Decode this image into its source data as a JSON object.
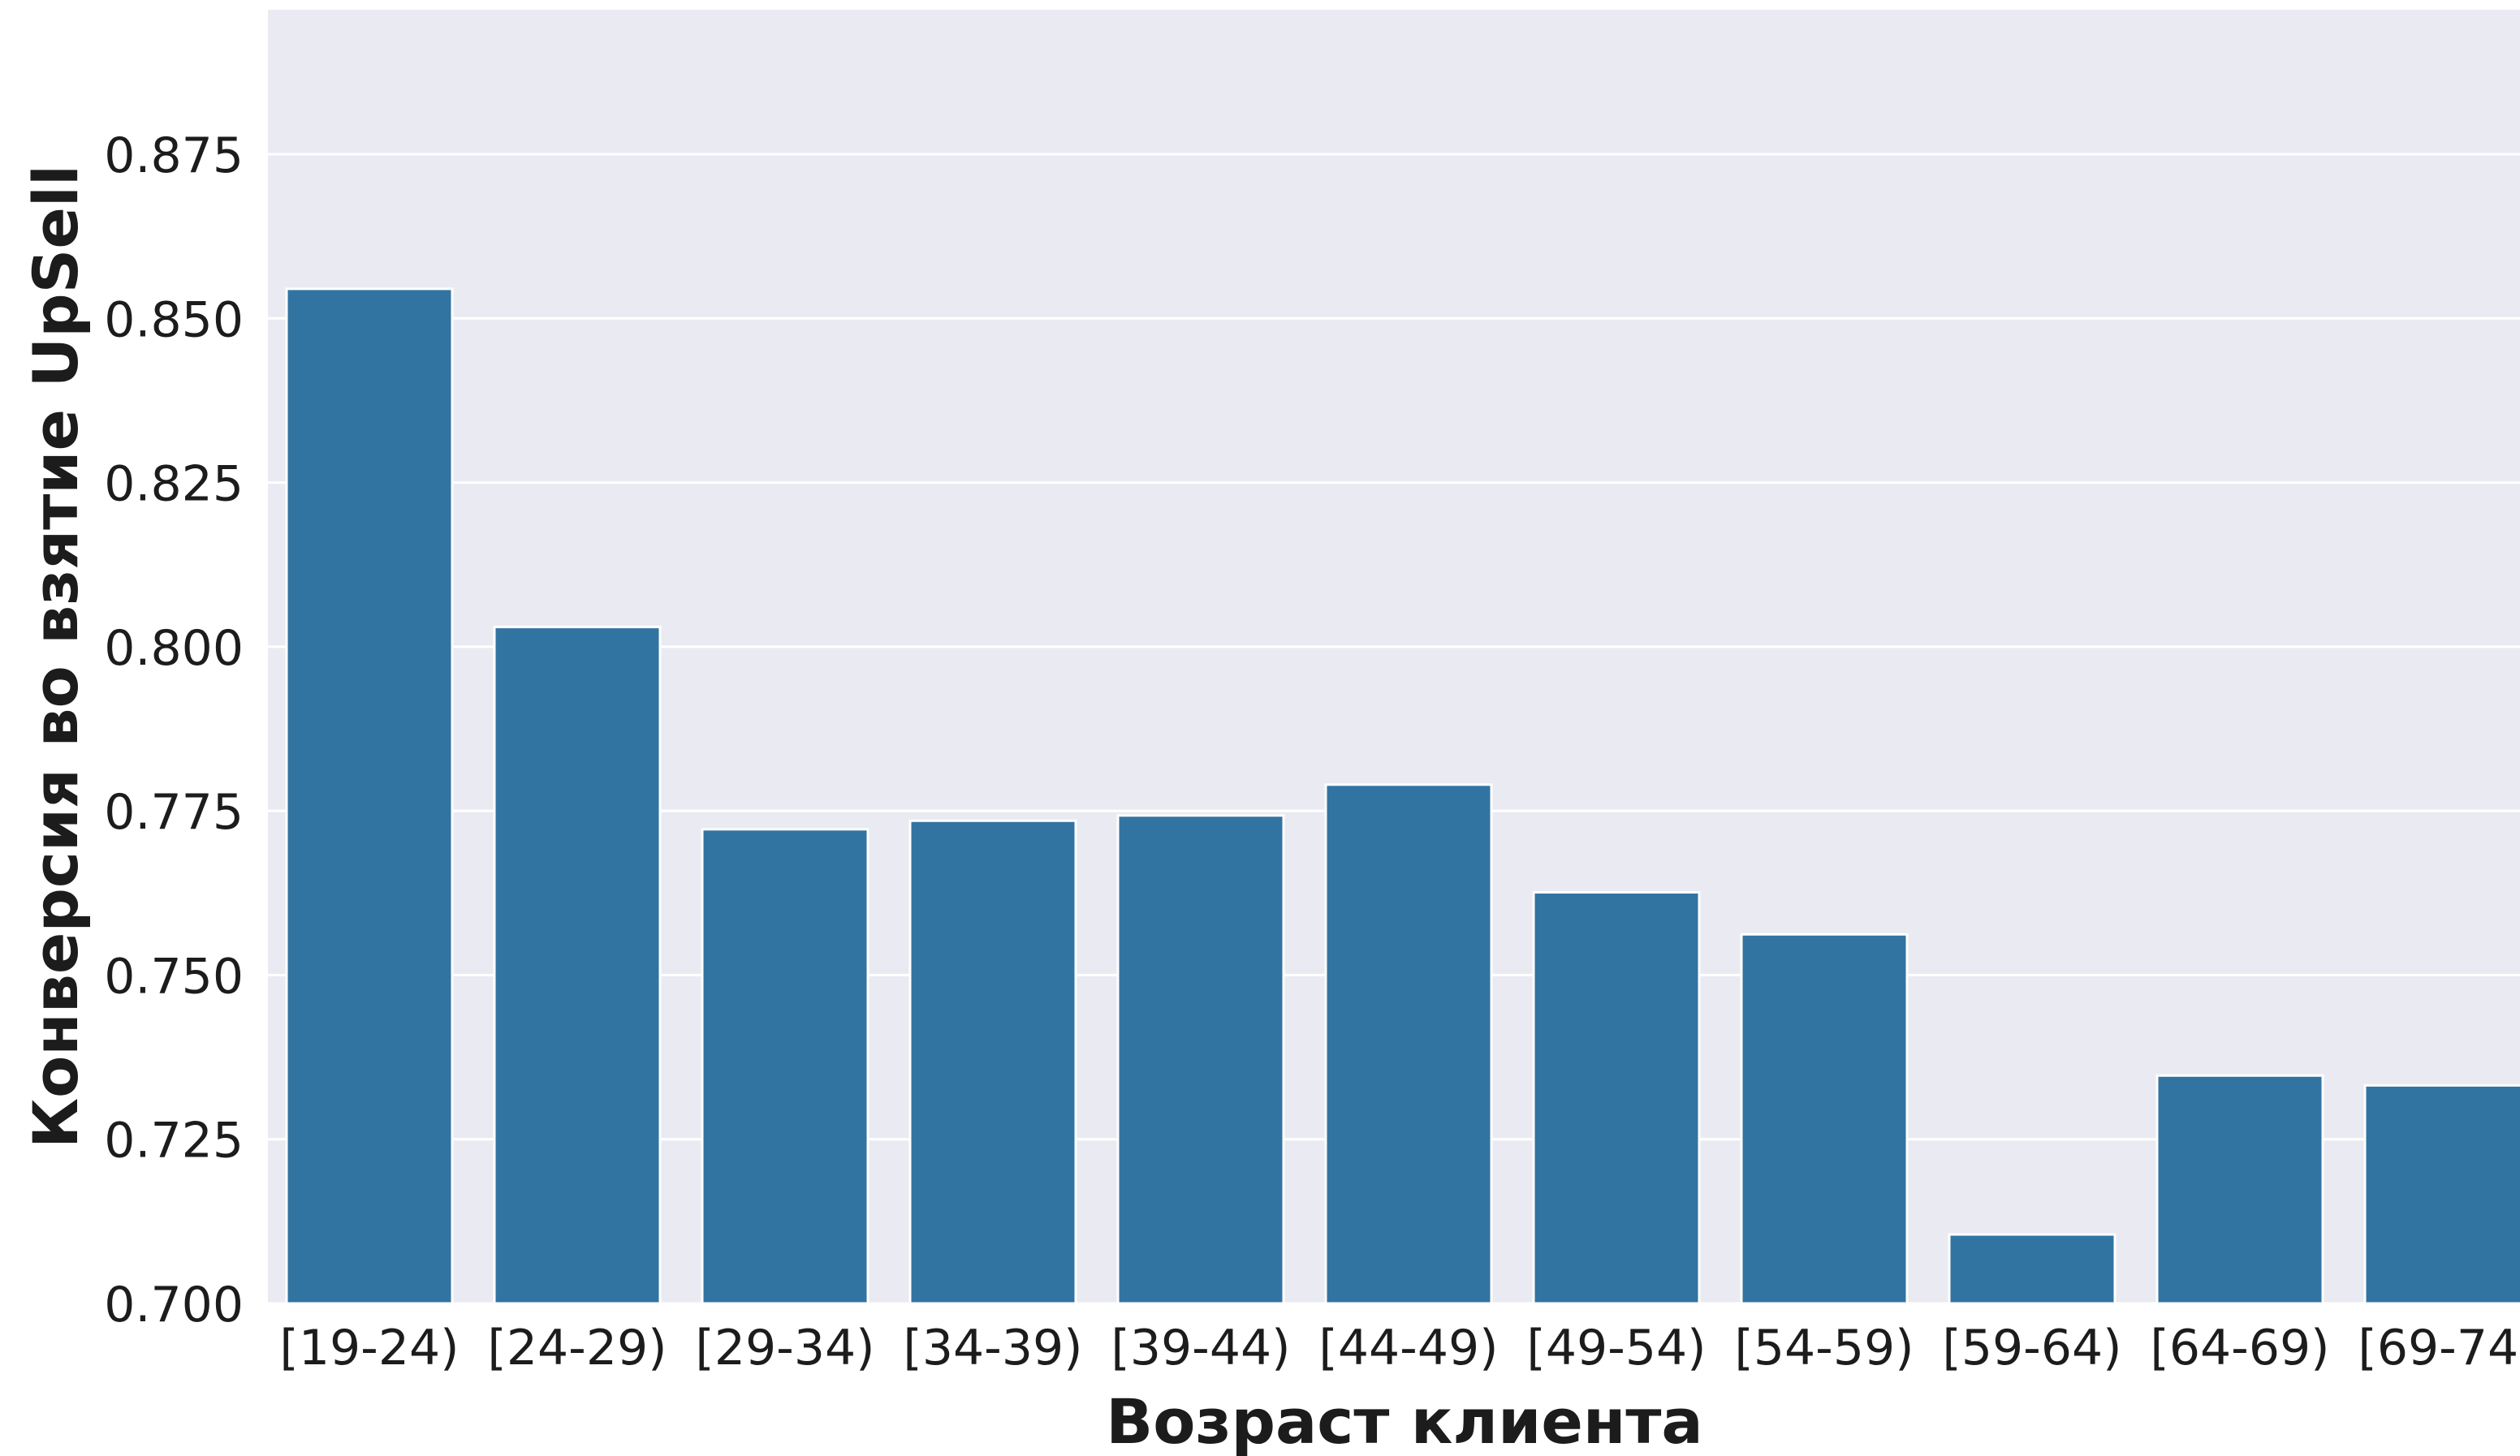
{
  "chart_data": {
    "type": "bar",
    "title": "",
    "xlabel": "Возраст клиента",
    "ylabel": "Конверсия во взятие UpSell",
    "categories": [
      "[19-24)",
      "[24-29)",
      "[29-34)",
      "[34-39)",
      "[39-44)",
      "[44-49)",
      "[49-54)",
      "[54-59)",
      "[59-64)",
      "[64-69)",
      "[69-74)"
    ],
    "values": [
      0.8545,
      0.803,
      0.7722,
      0.7735,
      0.7743,
      0.779,
      0.7626,
      0.7562,
      0.7105,
      0.7347,
      0.7332
    ],
    "yticks": [
      "0.700",
      "0.725",
      "0.750",
      "0.775",
      "0.800",
      "0.825",
      "0.850",
      "0.875"
    ],
    "ylim": [
      0.7,
      0.897
    ],
    "grid": true,
    "colors": {
      "bar": "#3274a1",
      "background": "#eaeaf2",
      "grid": "#ffffff"
    }
  }
}
